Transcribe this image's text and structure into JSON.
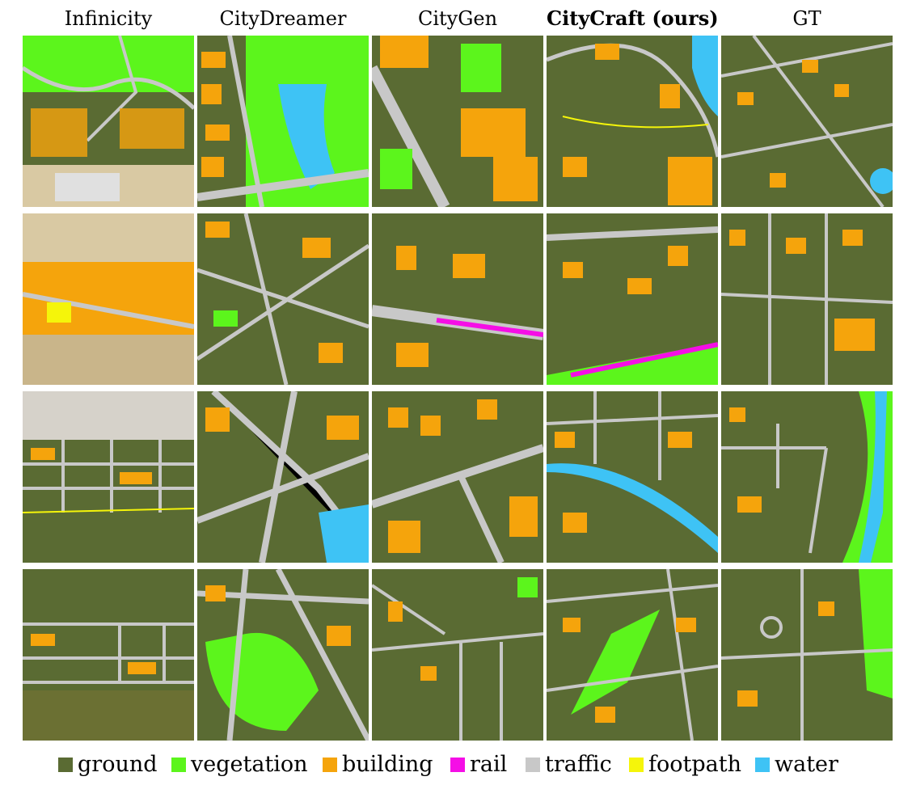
{
  "columns": [
    {
      "label": "Infinicity",
      "bold": false
    },
    {
      "label": "CityDreamer",
      "bold": false
    },
    {
      "label": "CityGen",
      "bold": false
    },
    {
      "label": "CityCraft (ours)",
      "bold": true
    },
    {
      "label": "GT",
      "bold": false
    }
  ],
  "legend": [
    {
      "label": "ground",
      "color": "#5a6b33"
    },
    {
      "label": "vegetation",
      "color": "#5cf51c"
    },
    {
      "label": "building",
      "color": "#f5a40c"
    },
    {
      "label": "rail",
      "color": "#f50ee6"
    },
    {
      "label": "traffic",
      "color": "#c8c8c8"
    },
    {
      "label": "footpath",
      "color": "#f5f50a"
    },
    {
      "label": "water",
      "color": "#3ec3f5"
    }
  ]
}
